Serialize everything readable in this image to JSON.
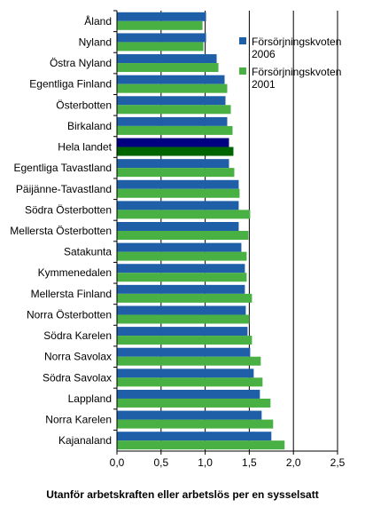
{
  "chart_data": {
    "type": "bar",
    "orientation": "horizontal",
    "categories": [
      "Åland",
      "Nyland",
      "Östra Nyland",
      "Egentliga Finland",
      "Österbotten",
      "Birkaland",
      "Hela landet",
      "Egentliga Tavastland",
      "Päijänne-Tavastland",
      "Södra Österbotten",
      "Mellersta Österbotten",
      "Satakunta",
      "Kymmenedalen",
      "Mellersta Finland",
      "Norra Österbotten",
      "Södra Karelen",
      "Norra Savolax",
      "Södra Savolax",
      "Lappland",
      "Norra Karelen",
      "Kajanaland"
    ],
    "series": [
      {
        "name": "Försörjningskvoten 2006",
        "color": "#1f5fa8",
        "highlight_color": "#000080",
        "values": [
          1.01,
          1.01,
          1.13,
          1.22,
          1.23,
          1.25,
          1.27,
          1.27,
          1.38,
          1.38,
          1.38,
          1.41,
          1.45,
          1.45,
          1.46,
          1.48,
          1.51,
          1.55,
          1.62,
          1.64,
          1.75
        ]
      },
      {
        "name": "Försörjningskvoten 2001",
        "color": "#49b043",
        "highlight_color": "#006400",
        "values": [
          0.97,
          0.98,
          1.15,
          1.25,
          1.29,
          1.31,
          1.32,
          1.33,
          1.39,
          1.51,
          1.49,
          1.47,
          1.47,
          1.53,
          1.5,
          1.53,
          1.63,
          1.65,
          1.74,
          1.77,
          1.9
        ]
      }
    ],
    "highlight_category": "Hela landet",
    "xlabel": "Utanför arbetskraften eller arbetslös per en sysselsatt",
    "ylabel": "",
    "title": "",
    "xlim": [
      0,
      2.5
    ],
    "xticks": [
      "0,0",
      "0,5",
      "1,0",
      "1,5",
      "2,0",
      "2,5"
    ],
    "grid": "vertical",
    "legend_position": "top-right"
  }
}
